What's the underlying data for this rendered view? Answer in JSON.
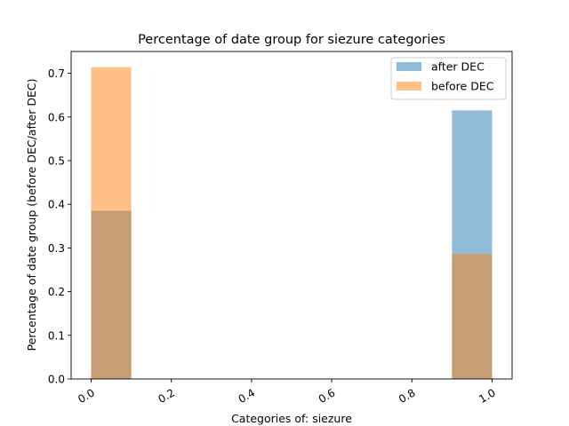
{
  "chart_data": {
    "type": "bar",
    "title": "Percentage of date group for siezure categories",
    "xlabel": "Categories of: siezure",
    "ylabel": "Percentage of date group (before DEC/after DEC)",
    "xlim": [
      -0.05,
      1.05
    ],
    "ylim": [
      0,
      0.75
    ],
    "xticks": [
      0.0,
      0.2,
      0.4,
      0.6,
      0.8,
      1.0
    ],
    "xtick_labels": [
      "0.0",
      "0.2",
      "0.4",
      "0.6",
      "0.8",
      "1.0"
    ],
    "yticks": [
      0.0,
      0.1,
      0.2,
      0.3,
      0.4,
      0.5,
      0.6,
      0.7
    ],
    "ytick_labels": [
      "0.0",
      "0.1",
      "0.2",
      "0.3",
      "0.4",
      "0.5",
      "0.6",
      "0.7"
    ],
    "grid": false,
    "legend_position": "top-right",
    "series": [
      {
        "name": "after DEC",
        "color": "#1f77b4",
        "opacity": 0.5,
        "bins": [
          [
            0.0,
            0.1
          ],
          [
            0.9,
            1.0
          ]
        ],
        "values": [
          0.385,
          0.615
        ]
      },
      {
        "name": "before DEC",
        "color": "#ff7f0e",
        "opacity": 0.5,
        "bins": [
          [
            0.0,
            0.1
          ],
          [
            0.9,
            1.0
          ]
        ],
        "values": [
          0.714,
          0.286
        ]
      }
    ]
  }
}
